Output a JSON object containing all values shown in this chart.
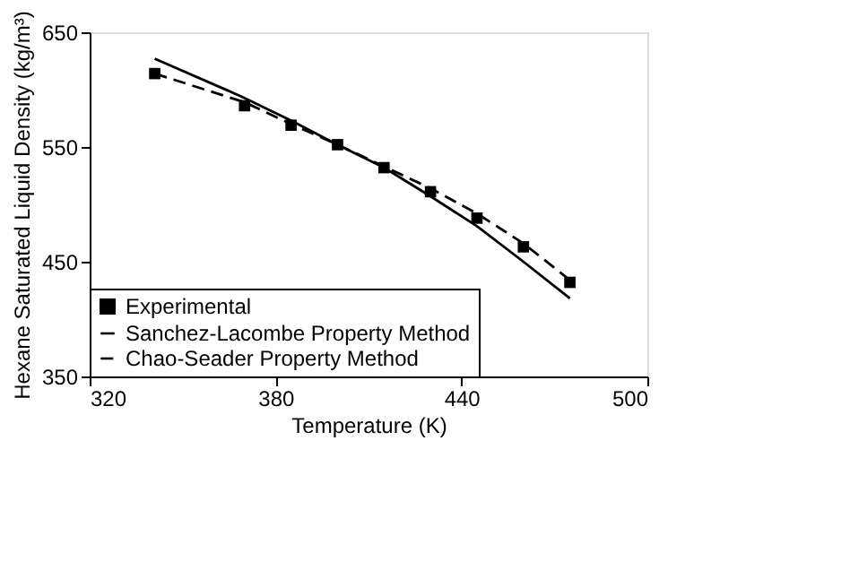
{
  "chart_data": {
    "type": "line",
    "xlabel": "Temperature (K)",
    "ylabel": "Hexane Saturated Liquid Density (kg/m³)",
    "xlim": [
      320,
      500
    ],
    "xticks": [
      320,
      380,
      440,
      500
    ],
    "ylim": [
      350,
      650
    ],
    "yticks": [
      350,
      450,
      550,
      650
    ],
    "grid": false,
    "legend": "bottom left",
    "series": [
      {
        "name": "Experimental",
        "type": "scatter",
        "marker": "square",
        "color": "#000000",
        "x": [
          341,
          370,
          385,
          400,
          415,
          430,
          445,
          460,
          475
        ],
        "values": [
          614,
          586,
          569,
          552,
          532,
          511,
          488,
          463,
          432
        ]
      },
      {
        "name": "Sanchez-Lacombe Property Method",
        "line_style": "solid",
        "marker": "none",
        "color": "#000000",
        "x": [
          341,
          369,
          385,
          400,
          415,
          430,
          445,
          460,
          475
        ],
        "values": [
          627,
          594,
          573,
          552,
          532,
          507,
          481,
          450,
          418
        ]
      },
      {
        "name": "Chao-Seader Property Method",
        "line_style": "dashed",
        "marker": "none",
        "color": "#000000",
        "x": [
          341,
          370,
          385,
          400,
          415,
          430,
          445,
          460,
          475
        ],
        "values": [
          614,
          589,
          570,
          552,
          533,
          514,
          492,
          466,
          434
        ]
      }
    ]
  }
}
